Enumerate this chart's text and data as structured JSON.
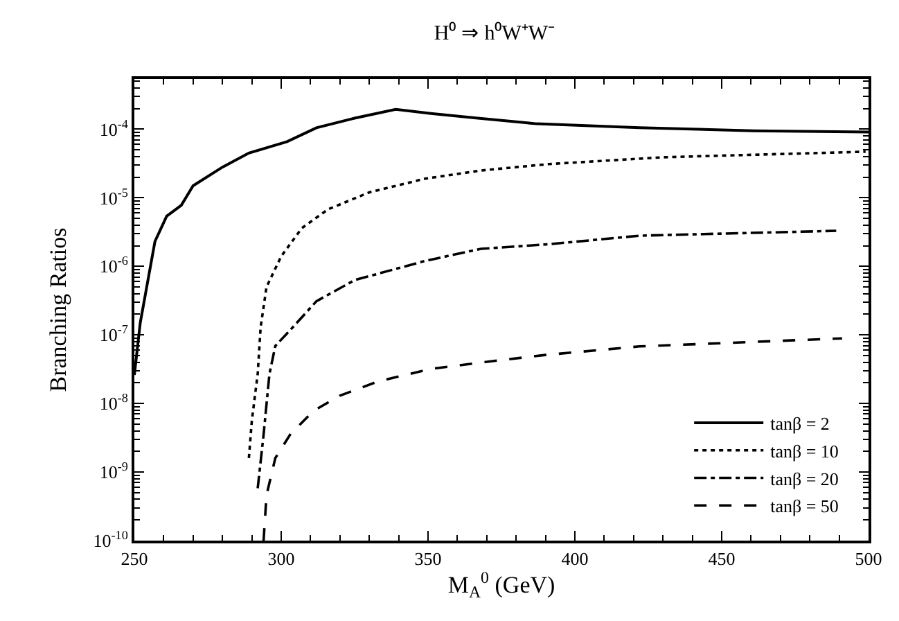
{
  "chart_data": {
    "type": "line",
    "title": "H⁰ ⇒ h⁰W⁺W⁻",
    "xlabel": "M$_{A}$$^{0}$ (GeV)",
    "ylabel": "Branching Ratios",
    "log": "y",
    "legend": "bottom right",
    "marker": "none",
    "xlim": [
      250,
      500
    ],
    "xticks": [
      250,
      300,
      350,
      400,
      450,
      500
    ],
    "ylim": [
      1e-10,
      0.00054
    ],
    "yticks": [
      {
        "value": 1e-10,
        "label": "10$^{-10}$"
      },
      {
        "value": 1e-09,
        "label": "10$^{-9}$"
      },
      {
        "value": 1e-08,
        "label": "10$^{-8}$"
      },
      {
        "value": 1e-07,
        "label": "10$^{-7}$"
      },
      {
        "value": 1e-06,
        "label": "10$^{-6}$"
      },
      {
        "value": 1e-05,
        "label": "10$^{-5}$"
      },
      {
        "value": 0.0001,
        "label": "10$^{-4}$"
      }
    ],
    "series": [
      {
        "name": "tanβ = 2",
        "color": "#000000",
        "line_style": "solid",
        "x": [
          250,
          252,
          257,
          261,
          266,
          270,
          280,
          289,
          302,
          312,
          325,
          339,
          351,
          367,
          387,
          422,
          461,
          500
        ],
        "values": [
          2.6e-08,
          1.5e-07,
          2.3e-06,
          5.4e-06,
          7.8e-06,
          1.5e-05,
          2.8e-05,
          4.5e-05,
          6.6e-05,
          0.000105,
          0.000145,
          0.000195,
          0.00017,
          0.000145,
          0.00012,
          0.000105,
          9.5e-05,
          9.1e-05
        ]
      },
      {
        "name": "tanβ = 10",
        "color": "#000000",
        "line_style": "dotted",
        "x": [
          289,
          290,
          292,
          293,
          295,
          300,
          307,
          316,
          330,
          349,
          368,
          391,
          430,
          499
        ],
        "values": [
          1.6e-09,
          5.6e-09,
          2.7e-08,
          1.3e-07,
          5e-07,
          1.4e-06,
          3.6e-06,
          6.8e-06,
          1.2e-05,
          1.9e-05,
          2.5e-05,
          3.1e-05,
          3.9e-05,
          4.7e-05
        ]
      },
      {
        "name": "tanβ = 20",
        "color": "#000000",
        "line_style": "dashdot",
        "x": [
          292,
          294,
          296,
          298,
          304,
          312,
          325,
          349,
          368,
          391,
          422,
          489
        ],
        "values": [
          5.8e-10,
          3.5e-09,
          2.7e-08,
          6.9e-08,
          1.3e-07,
          3.1e-07,
          6.3e-07,
          1.2e-06,
          1.8e-06,
          2.1e-06,
          2.8e-06,
          3.3e-06
        ]
      },
      {
        "name": "tanβ = 50",
        "color": "#000000",
        "line_style": "dashed",
        "x": [
          294,
          295,
          298,
          303,
          311,
          320,
          333,
          351,
          375,
          390,
          422,
          491
        ],
        "values": [
          1e-10,
          4.6e-10,
          1.6e-09,
          3.5e-09,
          7.8e-09,
          1.3e-08,
          2.1e-08,
          3.2e-08,
          4.3e-08,
          5.1e-08,
          6.8e-08,
          8.9e-08
        ]
      }
    ]
  }
}
